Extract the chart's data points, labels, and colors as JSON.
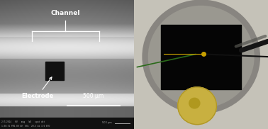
{
  "fig_width": 3.78,
  "fig_height": 1.82,
  "dpi": 100,
  "left_label_channel": "Channel",
  "left_label_electrode": "Electrode",
  "left_scalebar": "500 μm",
  "left_metadata_line1": "2/7/2014   HV   mag   WD   spot det",
  "left_metadata_line2": "1:38:51 PM2.00 kV  80x  20.5 mm 3.0 ETD",
  "sem_bg_top": "#606060",
  "sem_bg_mid_bright": "#e8e8e8",
  "sem_bg_mid_dark": "#a8a8a8",
  "sem_bg_bottom": "#585858",
  "sem_black_bar": "#1a1a1a",
  "electrode_color": "#1a1a1a",
  "right_bg": "#c8c5bc",
  "device_rect_color": "#080808",
  "device_ring_color": "#808080",
  "coin_color": "#c8b040",
  "wire_green": "#2a6a1a",
  "wire_gold": "#c8a000",
  "wire_black": "#101010",
  "wire_tube_color": "#909088"
}
